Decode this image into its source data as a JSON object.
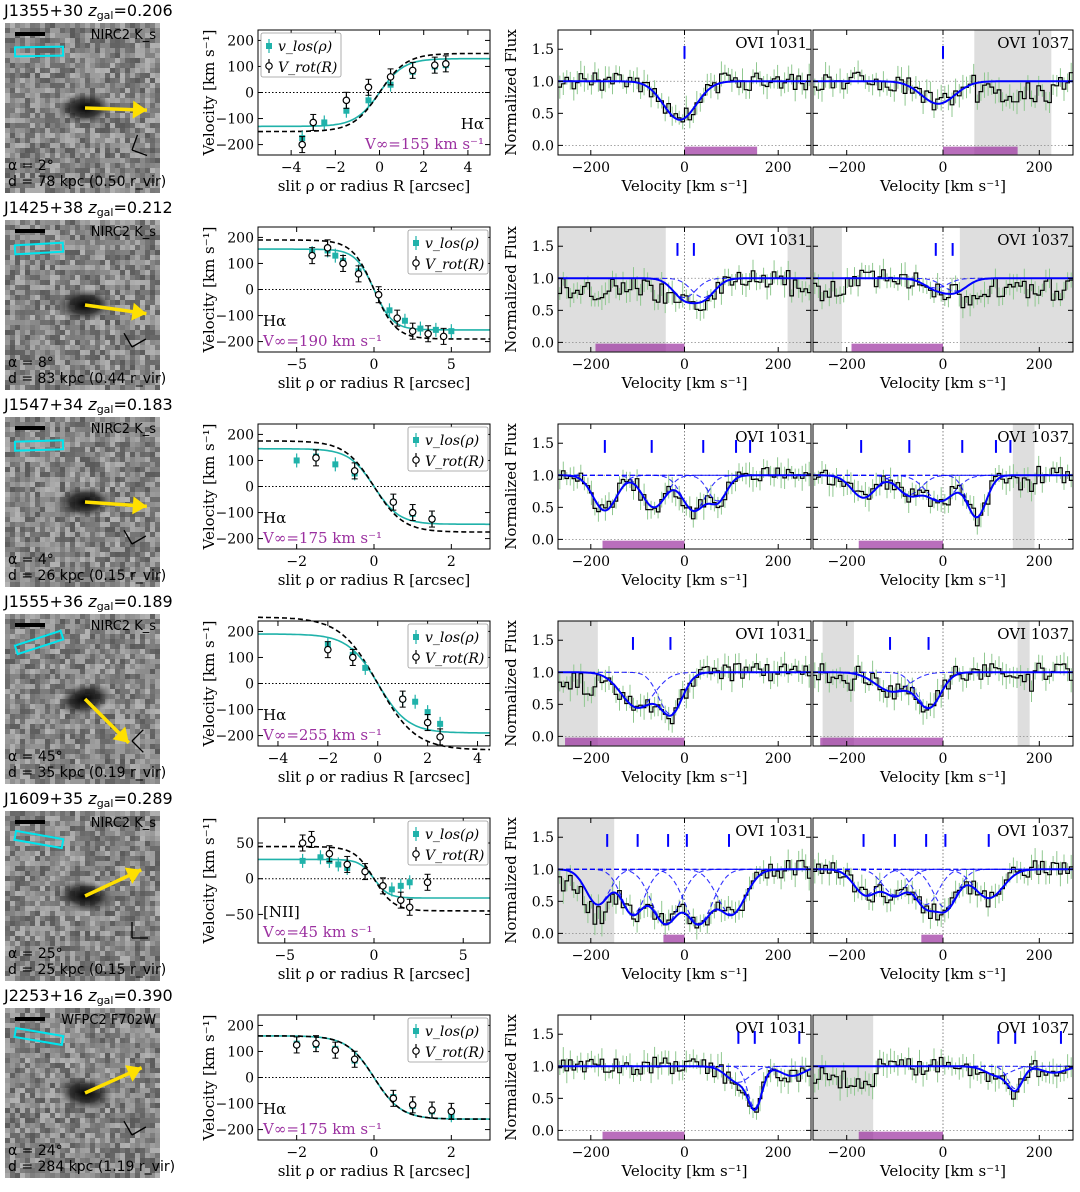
{
  "common": {
    "vel_ylabel": "Velocity [km s⁻¹]",
    "vel_xlabel": "slit ρ or radius R [arcsec]",
    "flux_ylabel": "Normalized Flux",
    "flux_xlabel": "Velocity [km s⁻¹]",
    "legend_los": "v_los(ρ)",
    "legend_rot": "V_rot(R)",
    "line1": "OVI 1031",
    "line2": "OVI 1037",
    "flux_xticks": [
      -200,
      0,
      200
    ],
    "flux_yticks": [
      0.0,
      0.5,
      1.0,
      1.5
    ],
    "flux_xlim": [
      -270,
      270
    ],
    "flux_ylim": [
      -0.15,
      1.8
    ],
    "colors": {
      "los": "#20b2aa",
      "rot": "#000000",
      "model": "#0000ff",
      "vinf": "#9b30a0",
      "arrow": "#ffe000",
      "slit": "#00e5ee",
      "gray": "#d3d3d3",
      "error": "#90c890"
    }
  },
  "chart_data": [
    {
      "type": "line",
      "galaxy": "J1355+30",
      "zgal": "0.206",
      "instrument": "NIRC2 K_s",
      "alpha": "α = 2°",
      "d": "d = 78 kpc (0.50 r_vir)",
      "arrow_angle_deg": 2,
      "compass_deg": 20,
      "line_label": "Hα",
      "vinf_label": "V∞=155 km s⁻¹",
      "vinf": 155,
      "legend_pos": "top-left",
      "label_pos": "bottom-right",
      "xlim": [
        -5.5,
        5
      ],
      "xticks": [
        -4,
        -2,
        0,
        2,
        4
      ],
      "ylim": [
        -240,
        240
      ],
      "yticks": [
        -200,
        -100,
        0,
        100,
        200
      ],
      "rot_curve": {
        "amp": 150,
        "scale": 1.2,
        "offset": 0
      },
      "los_curve": {
        "amp": 130,
        "scale": 1.1,
        "offset": 0
      },
      "los_points": [
        [
          -3.5,
          -175
        ],
        [
          -3.0,
          -120
        ],
        [
          -2.5,
          -115
        ],
        [
          -1.5,
          -70
        ],
        [
          -0.5,
          -30
        ],
        [
          0.5,
          30
        ],
        [
          1.5,
          80
        ],
        [
          2.5,
          100
        ],
        [
          3.0,
          105
        ]
      ],
      "rot_points": [
        [
          -3.5,
          -200
        ],
        [
          -3.0,
          -115
        ],
        [
          -1.5,
          -30
        ],
        [
          -0.5,
          20
        ],
        [
          0.5,
          60
        ],
        [
          1.5,
          85
        ],
        [
          2.5,
          105
        ],
        [
          3.0,
          110
        ]
      ],
      "flux1": {
        "mvel": [
          0
        ],
        "shaded": [],
        "purple": [
          0,
          155
        ],
        "comps": [
          {
            "v": -10,
            "d": 0.6,
            "w": 35
          }
        ]
      },
      "flux2": {
        "mvel": [
          0
        ],
        "shaded": [
          [
            65,
            225
          ]
        ],
        "purple": [
          0,
          155
        ],
        "comps": [
          {
            "v": -10,
            "d": 0.35,
            "w": 35
          }
        ]
      }
    },
    {
      "type": "line",
      "galaxy": "J1425+38",
      "zgal": "0.212",
      "instrument": "NIRC2 K_s",
      "alpha": "α = 8°",
      "d": "d = 83 kpc (0.44 r_vir)",
      "arrow_angle_deg": 8,
      "compass_deg": -30,
      "line_label": "Hα",
      "vinf_label": "V∞=190 km s⁻¹",
      "vinf": 190,
      "legend_pos": "top-right",
      "label_pos": "bottom-left",
      "xlim": [
        -7.5,
        7.5
      ],
      "xticks": [
        -5,
        0,
        5
      ],
      "ylim": [
        -240,
        240
      ],
      "yticks": [
        -200,
        -100,
        0,
        100,
        200
      ],
      "rot_curve": {
        "amp": -190,
        "scale": 1.4,
        "offset": 0
      },
      "los_curve": {
        "amp": -155,
        "scale": 1.2,
        "offset": 0
      },
      "los_points": [
        [
          -4.0,
          140
        ],
        [
          -3.0,
          150
        ],
        [
          -2.5,
          130
        ],
        [
          -2.0,
          110
        ],
        [
          -1.0,
          70
        ],
        [
          1.0,
          -80
        ],
        [
          2.0,
          -120
        ],
        [
          3.0,
          -150
        ],
        [
          4.0,
          -155
        ],
        [
          5.0,
          -160
        ]
      ],
      "rot_points": [
        [
          -4.0,
          130
        ],
        [
          -3.0,
          160
        ],
        [
          -2.0,
          100
        ],
        [
          -1.0,
          60
        ],
        [
          0.3,
          -20
        ],
        [
          1.5,
          -110
        ],
        [
          2.5,
          -160
        ],
        [
          3.5,
          -170
        ],
        [
          4.5,
          -180
        ]
      ],
      "flux1": {
        "mvel": [
          -15,
          20
        ],
        "shaded": [
          [
            -270,
            -40
          ],
          [
            220,
            270
          ]
        ],
        "purple": [
          -190,
          0
        ],
        "comps": [
          {
            "v": 0,
            "d": 0.3,
            "w": 25
          },
          {
            "v": 40,
            "d": 0.3,
            "w": 25
          }
        ]
      },
      "flux2": {
        "mvel": [
          -15,
          20
        ],
        "shaded": [
          [
            -270,
            -210
          ],
          [
            35,
            270
          ]
        ],
        "purple": [
          -190,
          0
        ],
        "comps": [
          {
            "v": -15,
            "d": 0.15,
            "w": 25
          },
          {
            "v": 25,
            "d": 0.2,
            "w": 25
          }
        ]
      }
    },
    {
      "type": "line",
      "galaxy": "J1547+34",
      "zgal": "0.183",
      "instrument": "NIRC2 K_s",
      "alpha": "α = 4°",
      "d": "d = 26 kpc (0.15 r_vir)",
      "arrow_angle_deg": 4,
      "compass_deg": -30,
      "line_label": "Hα",
      "vinf_label": "V∞=175 km s⁻¹",
      "vinf": 175,
      "legend_pos": "top-right",
      "label_pos": "bottom-left",
      "xlim": [
        -3,
        3
      ],
      "xticks": [
        -2,
        0,
        2
      ],
      "ylim": [
        -240,
        240
      ],
      "yticks": [
        -200,
        -100,
        0,
        100,
        200
      ],
      "rot_curve": {
        "amp": -175,
        "scale": 0.75,
        "offset": 0
      },
      "los_curve": {
        "amp": -145,
        "scale": 0.65,
        "offset": 0
      },
      "los_points": [
        [
          -2.0,
          100
        ],
        [
          -1.5,
          115
        ],
        [
          -1.0,
          85
        ],
        [
          -0.5,
          50
        ],
        [
          0.5,
          -60
        ],
        [
          1.0,
          -105
        ],
        [
          1.5,
          -125
        ]
      ],
      "rot_points": [
        [
          -1.5,
          110
        ],
        [
          -0.5,
          60
        ],
        [
          0.5,
          -60
        ],
        [
          1.0,
          -100
        ],
        [
          1.5,
          -125
        ]
      ],
      "flux1": {
        "mvel": [
          -170,
          -70,
          40,
          110,
          140
        ],
        "shaded": [],
        "purple": [
          -175,
          0
        ],
        "comps": [
          {
            "v": -170,
            "d": 0.55,
            "w": 25
          },
          {
            "v": -65,
            "d": 0.5,
            "w": 25
          },
          {
            "v": 20,
            "d": 0.55,
            "w": 25
          },
          {
            "v": 70,
            "d": 0.4,
            "w": 20
          }
        ]
      },
      "flux2": {
        "mvel": [
          -170,
          -70,
          40,
          110,
          140
        ],
        "shaded": [
          [
            145,
            190
          ]
        ],
        "purple": [
          -175,
          0
        ],
        "comps": [
          {
            "v": -165,
            "d": 0.35,
            "w": 25
          },
          {
            "v": -70,
            "d": 0.3,
            "w": 25
          },
          {
            "v": -5,
            "d": 0.4,
            "w": 30
          },
          {
            "v": 70,
            "d": 0.65,
            "w": 20
          }
        ]
      }
    },
    {
      "type": "line",
      "galaxy": "J1555+36",
      "zgal": "0.189",
      "instrument": "NIRC2 K_s",
      "alpha": "α = 45°",
      "d": "d = 35 kpc (0.19 r_vir)",
      "arrow_angle_deg": 45,
      "compass_deg": 45,
      "line_label": "Hα",
      "vinf_label": "V∞=255 km s⁻¹",
      "vinf": 255,
      "legend_pos": "top-right",
      "label_pos": "bottom-left",
      "xlim": [
        -4.8,
        4.5
      ],
      "xticks": [
        -4,
        -2,
        0,
        2,
        4
      ],
      "ylim": [
        -240,
        240
      ],
      "yticks": [
        -200,
        -100,
        0,
        100,
        200
      ],
      "rot_curve": {
        "amp": -255,
        "scale": 1.5,
        "offset": 0
      },
      "los_curve": {
        "amp": -190,
        "scale": 1.2,
        "offset": 0
      },
      "los_points": [
        [
          -2.0,
          150
        ],
        [
          -1.0,
          110
        ],
        [
          -0.5,
          60
        ],
        [
          1.0,
          -60
        ],
        [
          1.5,
          -70
        ],
        [
          2.0,
          -110
        ],
        [
          2.5,
          -155
        ]
      ],
      "rot_points": [
        [
          -2.0,
          130
        ],
        [
          -1.0,
          100
        ],
        [
          1.0,
          -60
        ],
        [
          2.0,
          -150
        ],
        [
          2.5,
          -205
        ]
      ],
      "flux1": {
        "mvel": [
          -110,
          -30
        ],
        "shaded": [
          [
            -270,
            -185
          ]
        ],
        "purple": [
          -255,
          0
        ],
        "comps": [
          {
            "v": -100,
            "d": 0.55,
            "w": 35
          },
          {
            "v": -30,
            "d": 0.65,
            "w": 25
          }
        ]
      },
      "flux2": {
        "mvel": [
          -110,
          -30
        ],
        "shaded": [
          [
            -250,
            -185
          ],
          [
            155,
            180
          ]
        ],
        "purple": [
          -255,
          0
        ],
        "comps": [
          {
            "v": -105,
            "d": 0.3,
            "w": 35
          },
          {
            "v": -30,
            "d": 0.55,
            "w": 25
          }
        ]
      }
    },
    {
      "type": "line",
      "galaxy": "J1609+35",
      "zgal": "0.289",
      "instrument": "NIRC2 K_s",
      "alpha": "α = 25°",
      "d": "d = 25 kpc (0.15 r_vir)",
      "arrow_angle_deg": -25,
      "compass_deg": 0,
      "line_label": "[NII]",
      "vinf_label": "V∞=45 km s⁻¹",
      "vinf": 45,
      "legend_pos": "top-right",
      "label_pos": "bottom-left",
      "xlim": [
        -6.5,
        6.5
      ],
      "xticks": [
        -5,
        0,
        5
      ],
      "ylim": [
        -90,
        85
      ],
      "yticks": [
        -50,
        0,
        50
      ],
      "rot_curve": {
        "amp": -45,
        "scale": 1.1,
        "offset": 0
      },
      "los_curve": {
        "amp": -27,
        "scale": 0.8,
        "offset": 0
      },
      "los_points": [
        [
          -4.0,
          25
        ],
        [
          -3.0,
          30
        ],
        [
          -2.5,
          25
        ],
        [
          -2.0,
          20
        ],
        [
          -1.5,
          15
        ],
        [
          1.0,
          -15
        ],
        [
          1.5,
          -10
        ],
        [
          2.0,
          -5
        ]
      ],
      "rot_points": [
        [
          -4.0,
          50
        ],
        [
          -3.5,
          55
        ],
        [
          -2.5,
          35
        ],
        [
          -1.5,
          20
        ],
        [
          -0.5,
          10
        ],
        [
          0.5,
          -10
        ],
        [
          1.5,
          -30
        ],
        [
          2.0,
          -40
        ],
        [
          3.0,
          -5
        ]
      ],
      "flux1": {
        "mvel": [
          -165,
          -100,
          -35,
          5,
          95
        ],
        "shaded": [
          [
            -270,
            -150
          ]
        ],
        "purple": [
          -45,
          0
        ],
        "comps": [
          {
            "v": -185,
            "d": 0.55,
            "w": 25
          },
          {
            "v": -110,
            "d": 0.7,
            "w": 25
          },
          {
            "v": -40,
            "d": 0.85,
            "w": 30
          },
          {
            "v": 30,
            "d": 0.85,
            "w": 30
          },
          {
            "v": 100,
            "d": 0.7,
            "w": 30
          }
        ]
      },
      "flux2": {
        "mvel": [
          -165,
          -100,
          -35,
          5,
          95
        ],
        "shaded": [],
        "purple": [
          -45,
          0
        ],
        "comps": [
          {
            "v": -160,
            "d": 0.4,
            "w": 25
          },
          {
            "v": -100,
            "d": 0.4,
            "w": 25
          },
          {
            "v": -35,
            "d": 0.55,
            "w": 25
          },
          {
            "v": 5,
            "d": 0.6,
            "w": 25
          },
          {
            "v": 95,
            "d": 0.45,
            "w": 30
          }
        ]
      }
    },
    {
      "type": "line",
      "galaxy": "J2253+16",
      "zgal": "0.390",
      "instrument": "WFPC2 F702W",
      "alpha": "α = 24°",
      "d": "d = 284 kpc (1.19 r_vir)",
      "arrow_angle_deg": -24,
      "compass_deg": -30,
      "line_label": "Hα",
      "vinf_label": "V∞=175 km s⁻¹",
      "vinf": 175,
      "legend_pos": "top-right",
      "label_pos": "bottom-left",
      "xlim": [
        -3,
        3
      ],
      "xticks": [
        -2,
        0,
        2
      ],
      "ylim": [
        -240,
        240
      ],
      "yticks": [
        -200,
        -100,
        0,
        100,
        200
      ],
      "rot_curve": {
        "amp": -160,
        "scale": 0.7,
        "offset": 0
      },
      "los_curve": {
        "amp": -160,
        "scale": 0.7,
        "offset": 0
      },
      "los_points": [
        [
          -2.0,
          130
        ],
        [
          -1.5,
          125
        ],
        [
          -1.0,
          110
        ],
        [
          -0.5,
          65
        ],
        [
          0.5,
          -75
        ],
        [
          1.0,
          -110
        ],
        [
          1.5,
          -130
        ],
        [
          2.0,
          -145
        ]
      ],
      "rot_points": [
        [
          -2.0,
          125
        ],
        [
          -1.5,
          130
        ],
        [
          -1.0,
          105
        ],
        [
          -0.5,
          70
        ],
        [
          0.5,
          -80
        ],
        [
          1.0,
          -105
        ],
        [
          1.5,
          -125
        ],
        [
          2.0,
          -130
        ]
      ],
      "flux1": {
        "mvel": [
          115,
          150,
          245
        ],
        "shaded": [],
        "purple": [
          -175,
          0
        ],
        "comps": [
          {
            "v": 115,
            "d": 0.25,
            "w": 25
          },
          {
            "v": 150,
            "d": 0.65,
            "w": 15
          },
          {
            "v": 230,
            "d": 0.15,
            "w": 25
          }
        ]
      },
      "flux2": {
        "mvel": [
          115,
          150,
          245
        ],
        "shaded": [
          [
            -270,
            -145
          ]
        ],
        "purple": [
          -175,
          0
        ],
        "comps": [
          {
            "v": 115,
            "d": 0.15,
            "w": 25
          },
          {
            "v": 150,
            "d": 0.35,
            "w": 15
          },
          {
            "v": 230,
            "d": 0.1,
            "w": 25
          }
        ]
      }
    }
  ]
}
